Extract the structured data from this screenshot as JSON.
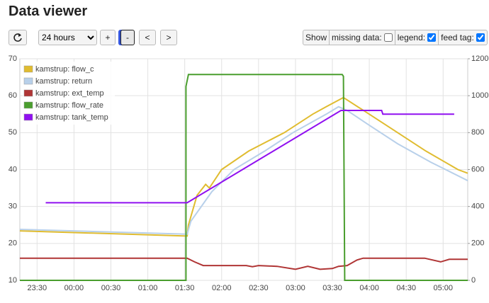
{
  "header": {
    "title": "Data viewer"
  },
  "toolbar": {
    "range": "24 hours",
    "buttons": [
      "+",
      "-",
      "<",
      ">"
    ],
    "show": "Show",
    "options": [
      {
        "label": "missing data:",
        "checked": false
      },
      {
        "label": "legend:",
        "checked": true
      },
      {
        "label": "feed tag:",
        "checked": true
      }
    ]
  },
  "chart_data": {
    "type": "line",
    "grid": true,
    "legend": "upper left",
    "xlim": [
      "23:16",
      "05:20"
    ],
    "xticks": [
      "23:30",
      "00:00",
      "00:30",
      "01:00",
      "01:30",
      "02:00",
      "02:30",
      "03:00",
      "03:30",
      "04:00",
      "04:30",
      "05:00"
    ],
    "ylim": [
      10,
      70
    ],
    "yticks": [
      10,
      20,
      30,
      40,
      50,
      60,
      70
    ],
    "y2lim": [
      0,
      1200
    ],
    "y2ticks": [
      0,
      200,
      400,
      600,
      800,
      1000,
      1200
    ],
    "series": [
      {
        "name": "kamstrup: flow_c",
        "color": "#e0bc30",
        "x": [
          "23:16",
          "01:32",
          "01:33",
          "01:40",
          "01:47",
          "01:50",
          "02:00",
          "02:22",
          "02:51",
          "03:14",
          "03:25",
          "03:39",
          "04:00",
          "04:23",
          "04:46",
          "05:12",
          "05:20"
        ],
        "values": [
          23.4,
          22,
          25,
          33,
          36,
          35,
          40,
          45,
          50,
          55,
          57,
          59.5,
          55,
          50,
          45,
          40,
          39
        ]
      },
      {
        "name": "kamstrup: return",
        "color": "#b8d0ea",
        "x": [
          "23:16",
          "01:32",
          "01:35",
          "01:52",
          "02:10",
          "02:35",
          "02:58",
          "03:25",
          "03:35",
          "03:42",
          "04:00",
          "04:23",
          "04:50",
          "05:20"
        ],
        "values": [
          23.8,
          22.5,
          26,
          34,
          40,
          45,
          50,
          55,
          57,
          56,
          52,
          47,
          42,
          37
        ]
      },
      {
        "name": "kamstrup: ext_temp",
        "color": "#b03535",
        "x": [
          "23:16",
          "01:32",
          "01:38",
          "01:45",
          "02:20",
          "02:25",
          "02:30",
          "02:45",
          "03:00",
          "03:10",
          "03:20",
          "03:30",
          "03:35",
          "03:42",
          "03:50",
          "03:55",
          "04:45",
          "04:58",
          "05:05",
          "05:20"
        ],
        "values": [
          16,
          16,
          15,
          14,
          14,
          13.7,
          14,
          13.8,
          13,
          13.8,
          13,
          13.2,
          13.8,
          14,
          15.5,
          16,
          16,
          15,
          15.7,
          15.7
        ]
      },
      {
        "name": "kamstrup: flow_rate",
        "color": "#4a9e2e",
        "axis": "y2",
        "x": [
          "23:16",
          "01:31",
          "01:31",
          "01:33",
          "03:38",
          "03:39",
          "03:40",
          "05:20"
        ],
        "values": [
          0,
          0,
          1050,
          1115,
          1115,
          1105,
          0,
          0
        ]
      },
      {
        "name": "kamstrup: tank_temp",
        "color": "#9010f0",
        "x": [
          "23:37",
          "01:32",
          "03:37",
          "04:10",
          "04:11",
          "05:09"
        ],
        "values": [
          31,
          31,
          56,
          56,
          55,
          55
        ]
      }
    ]
  }
}
